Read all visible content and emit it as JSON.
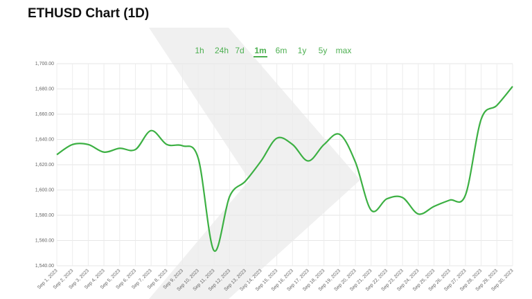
{
  "chart_data": {
    "type": "line",
    "title": "ETHUSD Chart (1D)",
    "categories": [
      "Sep 1, 2023",
      "Sep 2, 2023",
      "Sep 3, 2023",
      "Sep 4, 2023",
      "Sep 5, 2023",
      "Sep 6, 2023",
      "Sep 7, 2023",
      "Sep 8, 2023",
      "Sep 9, 2023",
      "Sep 10, 2023",
      "Sep 11, 2023",
      "Sep 12, 2023",
      "Sep 13, 2023",
      "Sep 14, 2023",
      "Sep 15, 2023",
      "Sep 16, 2023",
      "Sep 17, 2023",
      "Sep 18, 2023",
      "Sep 19, 2023",
      "Sep 20, 2023",
      "Sep 21, 2023",
      "Sep 22, 2023",
      "Sep 23, 2023",
      "Sep 24, 2023",
      "Sep 25, 2023",
      "Sep 26, 2023",
      "Sep 27, 2023",
      "Sep 28, 2023",
      "Sep 29, 2023",
      "Sep 30, 2023"
    ],
    "values": [
      1628,
      1636,
      1636,
      1630,
      1633,
      1632,
      1647,
      1636,
      1635,
      1625,
      1552,
      1595,
      1607,
      1623,
      1641,
      1636,
      1623,
      1636,
      1644,
      1622,
      1584,
      1593,
      1594,
      1581,
      1587,
      1592,
      1596,
      1656,
      1667,
      1682
    ],
    "color": "#3cb043",
    "ylim": [
      1540,
      1700
    ],
    "yticks": [
      {
        "value": 1540,
        "label": "1,540.00"
      },
      {
        "value": 1560,
        "label": "1,560.00"
      },
      {
        "value": 1580,
        "label": "1,580.00"
      },
      {
        "value": 1600,
        "label": "1,600.00"
      },
      {
        "value": 1620,
        "label": "1,620.00"
      },
      {
        "value": 1640,
        "label": "1,640.00"
      },
      {
        "value": 1660,
        "label": "1,660.00"
      },
      {
        "value": 1680,
        "label": "1,680.00"
      },
      {
        "value": 1700,
        "label": "1,700.00"
      }
    ],
    "grid": true
  },
  "controls": {
    "ranges": [
      "1h",
      "24h",
      "7d",
      "1m",
      "6m",
      "1y",
      "5y",
      "max"
    ],
    "selected": 3
  }
}
